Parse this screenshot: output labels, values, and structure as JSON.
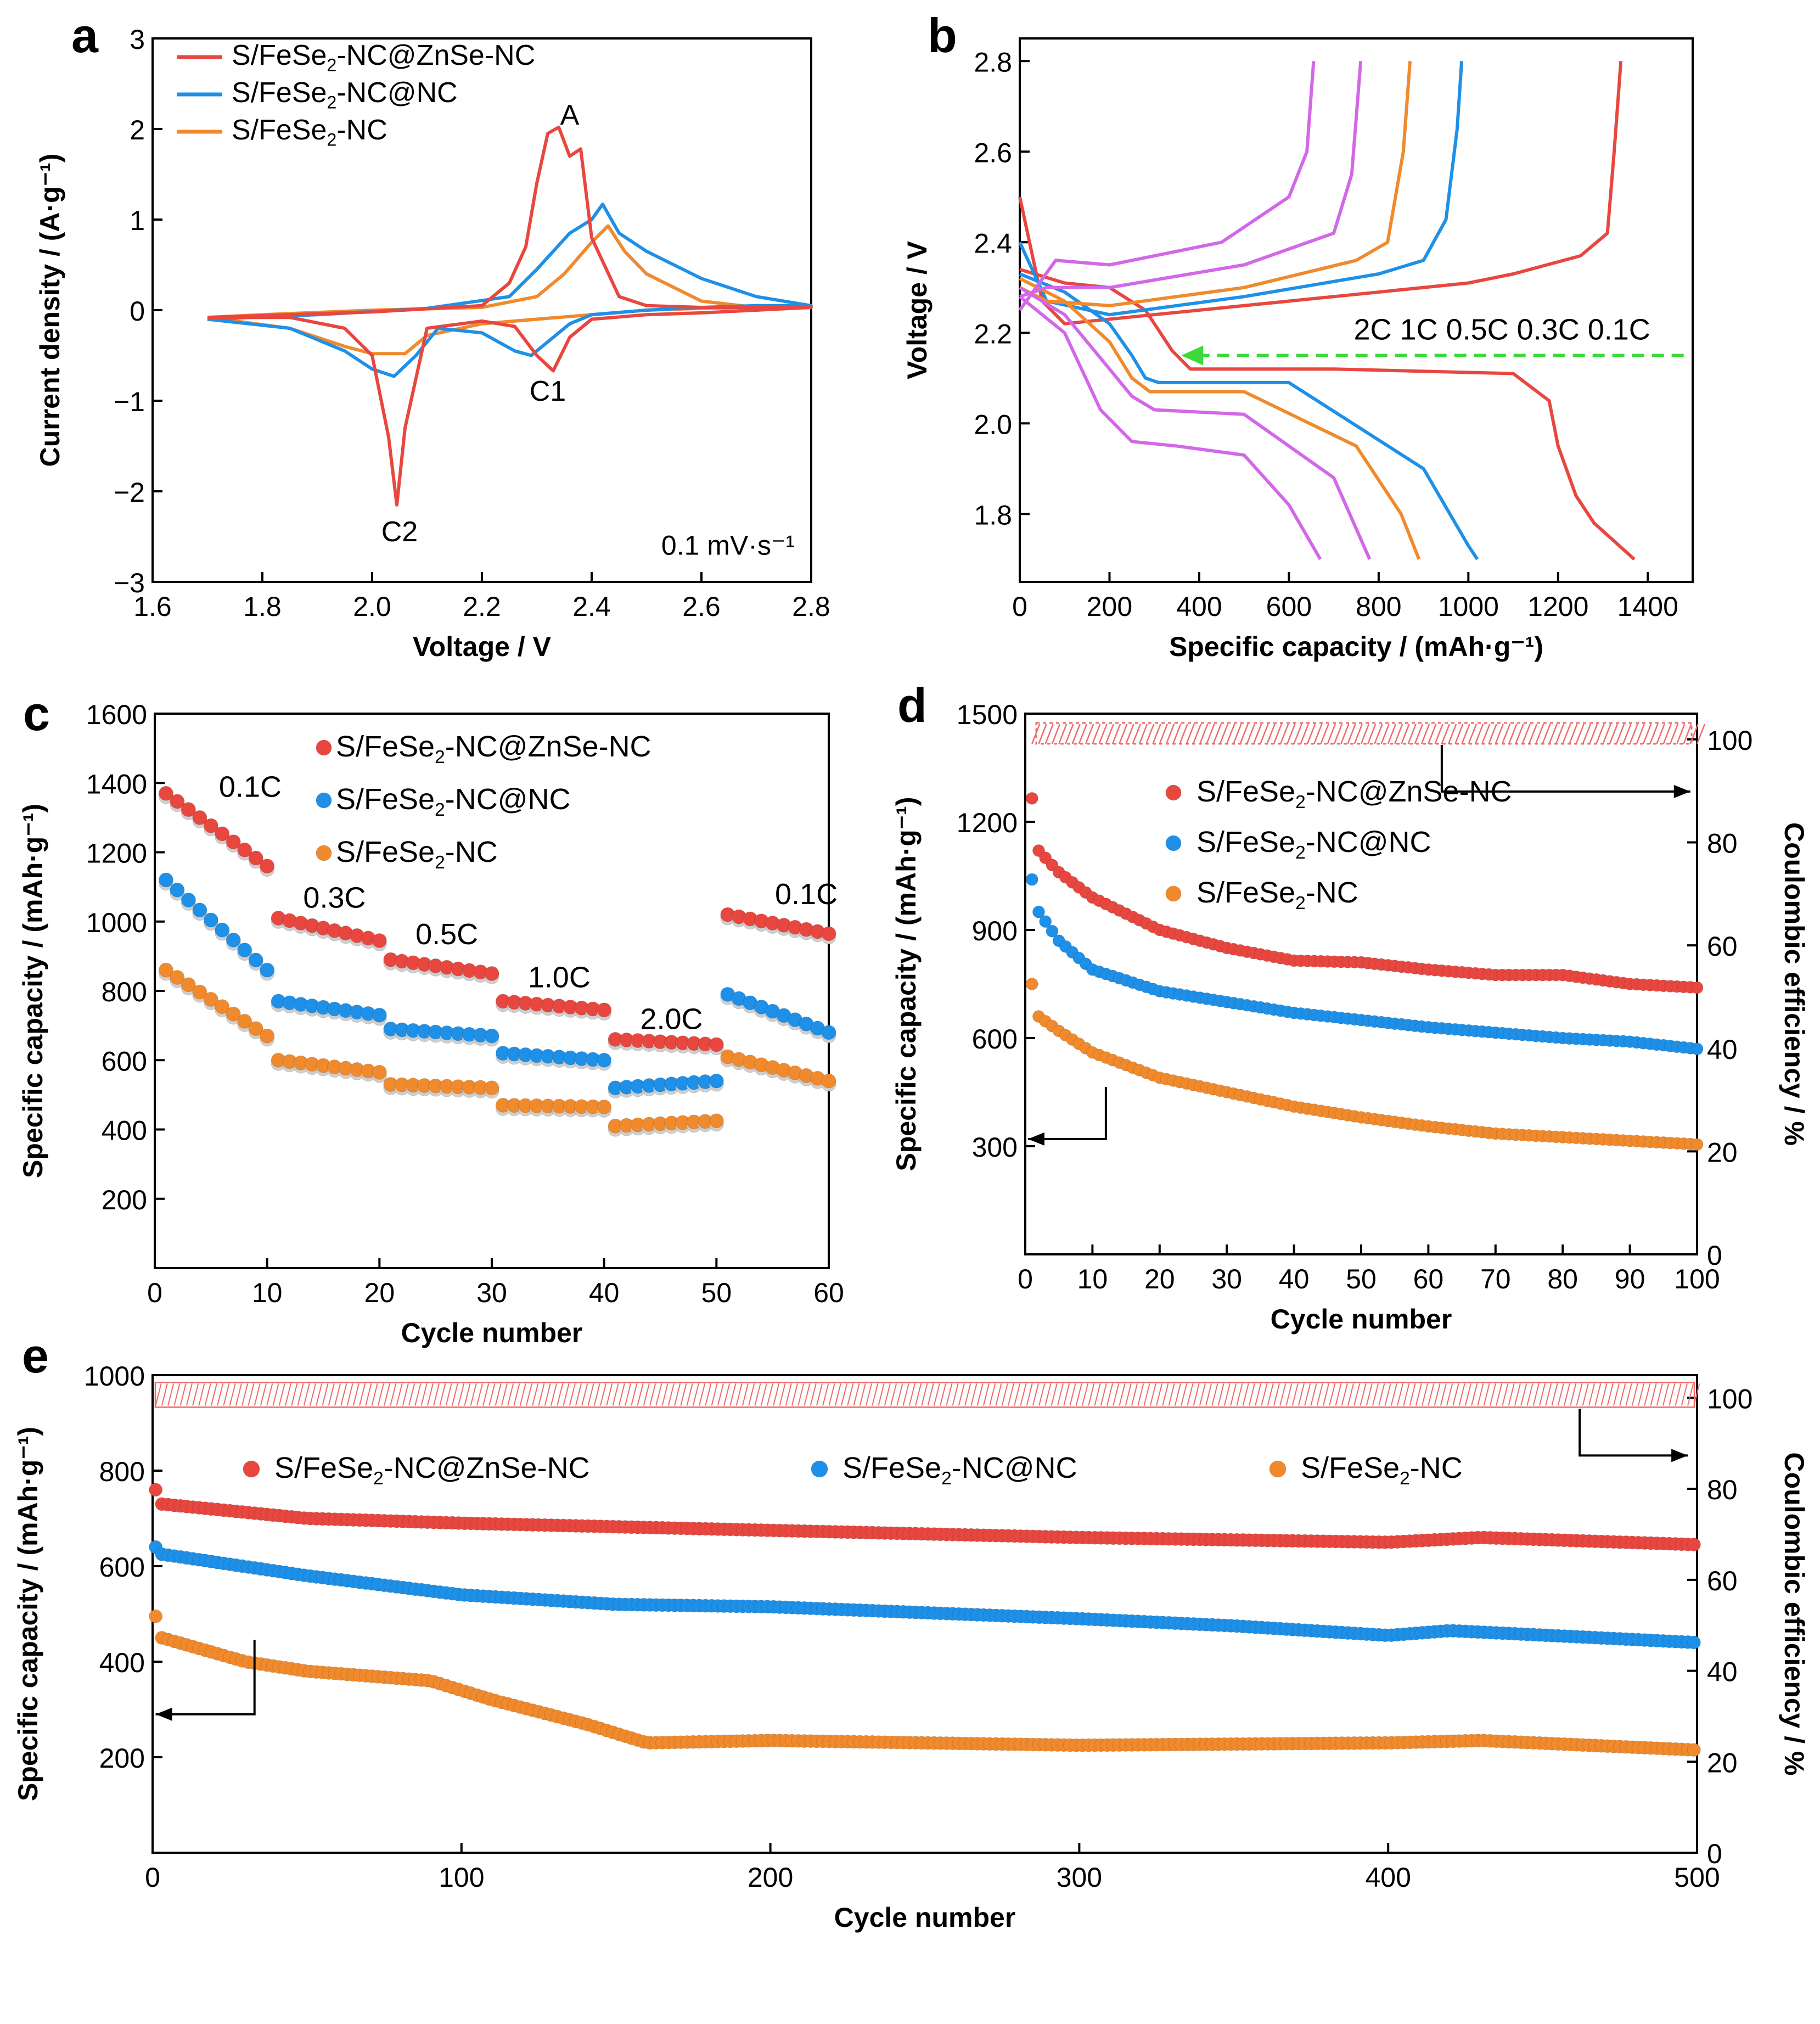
{
  "panels": {
    "a": {
      "letter": "a"
    },
    "b": {
      "letter": "b"
    },
    "c": {
      "letter": "c"
    },
    "d": {
      "letter": "d"
    },
    "e": {
      "letter": "e"
    }
  },
  "series_names": {
    "s1_main": "S/FeSe",
    "s1_sub": "2",
    "s1_tail": "-NC@ZnSe-NC",
    "s2_main": "S/FeSe",
    "s2_sub": "2",
    "s2_tail": "-NC@NC",
    "s3_main": "S/FeSe",
    "s3_sub": "2",
    "s3_tail": "-NC"
  },
  "colors": {
    "red": "#e8473f",
    "blue": "#1e90e8",
    "orange": "#f08a2c",
    "purple": "#d268e8",
    "green_arrow": "#3bd93b",
    "hatch_red": "#f06a6a"
  },
  "chart_data": [
    {
      "panel": "a",
      "type": "line",
      "xlabel": "Voltage / V",
      "ylabel": "Current density / (A·g⁻¹)",
      "xlim": [
        1.6,
        2.8
      ],
      "ylim": [
        -3,
        3
      ],
      "xticks": [
        "1.6",
        "1.8",
        "2.0",
        "2.2",
        "2.4",
        "2.6",
        "2.8"
      ],
      "yticks": [
        "−3",
        "−2",
        "−1",
        "0",
        "1",
        "2",
        "3"
      ],
      "annotations": [
        "A",
        "C1",
        "C2",
        "0.1 mV·s⁻¹"
      ],
      "legend": "top-left",
      "series": [
        {
          "name": "S/FeSe2-NC@ZnSe-NC",
          "color": "red",
          "x": [
            1.7,
            1.85,
            1.95,
            2.0,
            2.03,
            2.045,
            2.06,
            2.1,
            2.2,
            2.26,
            2.3,
            2.33,
            2.36,
            2.4,
            2.5,
            2.6,
            2.7,
            2.8,
            2.7,
            2.6,
            2.5,
            2.45,
            2.4,
            2.38,
            2.36,
            2.34,
            2.32,
            2.3,
            2.28,
            2.25,
            2.2,
            2.0,
            1.8,
            1.7
          ],
          "y": [
            -0.08,
            -0.08,
            -0.2,
            -0.5,
            -1.4,
            -2.15,
            -1.3,
            -0.2,
            -0.12,
            -0.18,
            -0.5,
            -0.67,
            -0.3,
            -0.1,
            -0.05,
            -0.03,
            0.0,
            0.03,
            0.03,
            0.03,
            0.05,
            0.15,
            0.8,
            1.78,
            1.7,
            2.02,
            1.95,
            1.4,
            0.7,
            0.3,
            0.05,
            -0.02,
            -0.06,
            -0.08
          ]
        },
        {
          "name": "S/FeSe2-NC@NC",
          "color": "blue",
          "x": [
            1.7,
            1.85,
            1.95,
            2.0,
            2.04,
            2.08,
            2.12,
            2.2,
            2.26,
            2.29,
            2.32,
            2.36,
            2.4,
            2.5,
            2.6,
            2.7,
            2.8,
            2.7,
            2.6,
            2.5,
            2.45,
            2.42,
            2.4,
            2.36,
            2.3,
            2.25,
            2.1,
            1.9,
            1.7
          ],
          "y": [
            -0.1,
            -0.2,
            -0.45,
            -0.65,
            -0.73,
            -0.5,
            -0.2,
            -0.25,
            -0.45,
            -0.5,
            -0.35,
            -0.15,
            -0.05,
            0.0,
            0.03,
            0.05,
            0.05,
            0.15,
            0.35,
            0.65,
            0.85,
            1.17,
            1.0,
            0.85,
            0.45,
            0.15,
            0.02,
            -0.05,
            -0.1
          ]
        },
        {
          "name": "S/FeSe2-NC",
          "color": "orange",
          "x": [
            1.7,
            1.85,
            1.95,
            2.0,
            2.06,
            2.1,
            2.2,
            2.3,
            2.4,
            2.5,
            2.6,
            2.7,
            2.8,
            2.7,
            2.6,
            2.5,
            2.46,
            2.43,
            2.4,
            2.35,
            2.3,
            2.2,
            2.0,
            1.8,
            1.7
          ],
          "y": [
            -0.08,
            -0.2,
            -0.4,
            -0.48,
            -0.48,
            -0.28,
            -0.15,
            -0.1,
            -0.05,
            0.0,
            0.02,
            0.03,
            0.03,
            0.03,
            0.1,
            0.4,
            0.65,
            0.93,
            0.75,
            0.4,
            0.15,
            0.03,
            0.0,
            -0.05,
            -0.08
          ]
        }
      ]
    },
    {
      "panel": "b",
      "type": "line",
      "xlabel": "Specific capacity / (mAh·g⁻¹)",
      "ylabel": "Voltage / V",
      "xlim": [
        0,
        1500
      ],
      "ylim": [
        1.65,
        2.85
      ],
      "xticks": [
        "0",
        "200",
        "400",
        "600",
        "800",
        "1000",
        "1200",
        "1400"
      ],
      "yticks": [
        "1.8",
        "2.0",
        "2.2",
        "2.4",
        "2.6",
        "2.8"
      ],
      "annotations": [
        "2C 1C 0.5C 0.3C 0.1C"
      ],
      "series": [
        {
          "name": "0.1C discharge",
          "color": "red",
          "x": [
            0,
            100,
            200,
            280,
            340,
            380,
            700,
            1100,
            1180,
            1200,
            1240,
            1280,
            1370
          ],
          "y": [
            2.34,
            2.31,
            2.3,
            2.25,
            2.16,
            2.12,
            2.12,
            2.11,
            2.05,
            1.95,
            1.84,
            1.78,
            1.7
          ]
        },
        {
          "name": "0.1C charge",
          "color": "red",
          "x": [
            0,
            50,
            100,
            300,
            700,
            1000,
            1100,
            1250,
            1310,
            1325,
            1340
          ],
          "y": [
            2.5,
            2.27,
            2.22,
            2.24,
            2.28,
            2.31,
            2.33,
            2.37,
            2.42,
            2.6,
            2.8
          ]
        },
        {
          "name": "0.3C discharge",
          "color": "blue",
          "x": [
            0,
            100,
            200,
            250,
            280,
            310,
            600,
            900,
            1000,
            1020
          ],
          "y": [
            2.33,
            2.29,
            2.22,
            2.15,
            2.1,
            2.09,
            2.09,
            1.9,
            1.73,
            1.7
          ]
        },
        {
          "name": "0.3C charge",
          "color": "blue",
          "x": [
            0,
            60,
            200,
            500,
            800,
            900,
            950,
            975,
            985
          ],
          "y": [
            2.4,
            2.27,
            2.24,
            2.28,
            2.33,
            2.36,
            2.45,
            2.65,
            2.8
          ]
        },
        {
          "name": "0.5C discharge",
          "color": "orange",
          "x": [
            0,
            100,
            200,
            250,
            290,
            500,
            750,
            850,
            890
          ],
          "y": [
            2.32,
            2.27,
            2.18,
            2.1,
            2.07,
            2.07,
            1.95,
            1.8,
            1.7
          ]
        },
        {
          "name": "0.5C charge",
          "color": "orange",
          "x": [
            0,
            60,
            200,
            500,
            750,
            820,
            855,
            870
          ],
          "y": [
            2.3,
            2.27,
            2.26,
            2.3,
            2.36,
            2.4,
            2.6,
            2.8
          ]
        },
        {
          "name": "1C discharge",
          "color": "purple",
          "x": [
            0,
            100,
            200,
            250,
            300,
            500,
            700,
            780
          ],
          "y": [
            2.3,
            2.24,
            2.12,
            2.06,
            2.03,
            2.02,
            1.88,
            1.7
          ]
        },
        {
          "name": "1C charge",
          "color": "purple",
          "x": [
            0,
            60,
            200,
            500,
            700,
            740,
            760
          ],
          "y": [
            2.28,
            2.3,
            2.3,
            2.35,
            2.42,
            2.55,
            2.8
          ]
        },
        {
          "name": "2C discharge",
          "color": "purple",
          "x": [
            0,
            100,
            180,
            250,
            350,
            500,
            600,
            670
          ],
          "y": [
            2.28,
            2.2,
            2.03,
            1.96,
            1.95,
            1.93,
            1.82,
            1.7
          ]
        },
        {
          "name": "2C charge",
          "color": "purple",
          "x": [
            0,
            80,
            200,
            450,
            600,
            640,
            655
          ],
          "y": [
            2.25,
            2.36,
            2.35,
            2.4,
            2.5,
            2.6,
            2.8
          ]
        }
      ]
    },
    {
      "panel": "c",
      "type": "scatter",
      "xlabel": "Cycle number",
      "ylabel": "Specific capacity / (mAh·g⁻¹)",
      "xlim": [
        0,
        60
      ],
      "ylim": [
        0,
        1600
      ],
      "xticks": [
        "0",
        "10",
        "20",
        "30",
        "40",
        "50",
        "60"
      ],
      "yticks": [
        "200",
        "400",
        "600",
        "800",
        "1000",
        "1200",
        "1400",
        "1600"
      ],
      "rate_labels": [
        "0.1C",
        "0.3C",
        "0.5C",
        "1.0C",
        "2.0C",
        "0.1C"
      ],
      "legend": "top-center",
      "segments": [
        {
          "from": 1,
          "to": 10,
          "red": [
            1370,
            1160
          ],
          "blue": [
            1120,
            860
          ],
          "orange": [
            860,
            670
          ]
        },
        {
          "from": 11,
          "to": 20,
          "red": [
            1010,
            945
          ],
          "blue": [
            770,
            730
          ],
          "orange": [
            600,
            565
          ]
        },
        {
          "from": 21,
          "to": 30,
          "red": [
            890,
            850
          ],
          "blue": [
            690,
            670
          ],
          "orange": [
            530,
            520
          ]
        },
        {
          "from": 31,
          "to": 40,
          "red": [
            770,
            745
          ],
          "blue": [
            620,
            600
          ],
          "orange": [
            470,
            465
          ]
        },
        {
          "from": 41,
          "to": 50,
          "red": [
            660,
            645
          ],
          "blue": [
            520,
            540
          ],
          "orange": [
            410,
            425
          ]
        },
        {
          "from": 51,
          "to": 60,
          "red": [
            1020,
            965
          ],
          "blue": [
            790,
            680
          ],
          "orange": [
            610,
            540
          ]
        }
      ]
    },
    {
      "panel": "d",
      "type": "scatter",
      "xlabel": "Cycle number",
      "ylabel": "Specific capacity / (mAh·g⁻¹)",
      "ylabel_right": "Coulombic efficiency / %",
      "xlim": [
        0,
        100
      ],
      "ylim": [
        0,
        1500
      ],
      "ylim_right": [
        0,
        105
      ],
      "xticks": [
        "0",
        "10",
        "20",
        "30",
        "40",
        "50",
        "60",
        "70",
        "80",
        "90",
        "100"
      ],
      "yticks": [
        "300",
        "600",
        "900",
        "1200",
        "1500"
      ],
      "yticks_right": [
        "0",
        "20",
        "40",
        "60",
        "80",
        "100"
      ],
      "legend": "top-center",
      "series": [
        {
          "name": "S/FeSe2-NC@ZnSe-NC",
          "color": "red",
          "first": 1265,
          "points": [
            [
              2,
              1120
            ],
            [
              5,
              1060
            ],
            [
              10,
              990
            ],
            [
              20,
              900
            ],
            [
              30,
              850
            ],
            [
              40,
              815
            ],
            [
              50,
              810
            ],
            [
              60,
              790
            ],
            [
              70,
              775
            ],
            [
              80,
              775
            ],
            [
              90,
              750
            ],
            [
              100,
              740
            ]
          ]
        },
        {
          "name": "S/FeSe2-NC@NC",
          "color": "blue",
          "first": 1040,
          "points": [
            [
              2,
              950
            ],
            [
              5,
              870
            ],
            [
              10,
              790
            ],
            [
              20,
              730
            ],
            [
              30,
              700
            ],
            [
              40,
              670
            ],
            [
              50,
              650
            ],
            [
              60,
              630
            ],
            [
              70,
              615
            ],
            [
              80,
              600
            ],
            [
              90,
              590
            ],
            [
              100,
              570
            ]
          ]
        },
        {
          "name": "S/FeSe2-NC",
          "color": "orange",
          "first": 750,
          "points": [
            [
              2,
              660
            ],
            [
              5,
              620
            ],
            [
              10,
              560
            ],
            [
              20,
              490
            ],
            [
              30,
              450
            ],
            [
              40,
              410
            ],
            [
              50,
              380
            ],
            [
              60,
              355
            ],
            [
              70,
              335
            ],
            [
              80,
              325
            ],
            [
              90,
              315
            ],
            [
              100,
              305
            ]
          ]
        }
      ],
      "ce_value": 100
    },
    {
      "panel": "e",
      "type": "scatter",
      "xlabel": "Cycle number",
      "ylabel": "Specific capacity / (mAh·g⁻¹)",
      "ylabel_right": "Coulombic efficiency / %",
      "xlim": [
        0,
        500
      ],
      "ylim": [
        0,
        1000
      ],
      "ylim_right": [
        0,
        105
      ],
      "xticks": [
        "0",
        "100",
        "200",
        "300",
        "400",
        "500"
      ],
      "yticks": [
        "200",
        "400",
        "600",
        "800",
        "1000"
      ],
      "yticks_right": [
        "0",
        "20",
        "40",
        "60",
        "80",
        "100"
      ],
      "legend": "top",
      "series": [
        {
          "name": "S/FeSe2-NC@ZnSe-NC",
          "color": "red",
          "first": 760,
          "points": [
            [
              3,
              730
            ],
            [
              50,
              700
            ],
            [
              100,
              690
            ],
            [
              200,
              675
            ],
            [
              300,
              660
            ],
            [
              400,
              650
            ],
            [
              430,
              660
            ],
            [
              500,
              645
            ]
          ]
        },
        {
          "name": "S/FeSe2-NC@NC",
          "color": "blue",
          "first": 640,
          "points": [
            [
              3,
              625
            ],
            [
              50,
              580
            ],
            [
              100,
              540
            ],
            [
              150,
              520
            ],
            [
              200,
              515
            ],
            [
              300,
              490
            ],
            [
              350,
              475
            ],
            [
              400,
              455
            ],
            [
              420,
              465
            ],
            [
              500,
              440
            ]
          ]
        },
        {
          "name": "S/FeSe2-NC",
          "color": "orange",
          "first": 495,
          "points": [
            [
              3,
              450
            ],
            [
              30,
              400
            ],
            [
              50,
              380
            ],
            [
              90,
              360
            ],
            [
              110,
              320
            ],
            [
              140,
              270
            ],
            [
              160,
              230
            ],
            [
              200,
              235
            ],
            [
              300,
              225
            ],
            [
              400,
              230
            ],
            [
              430,
              235
            ],
            [
              500,
              215
            ]
          ]
        }
      ],
      "ce_value": 100
    }
  ]
}
